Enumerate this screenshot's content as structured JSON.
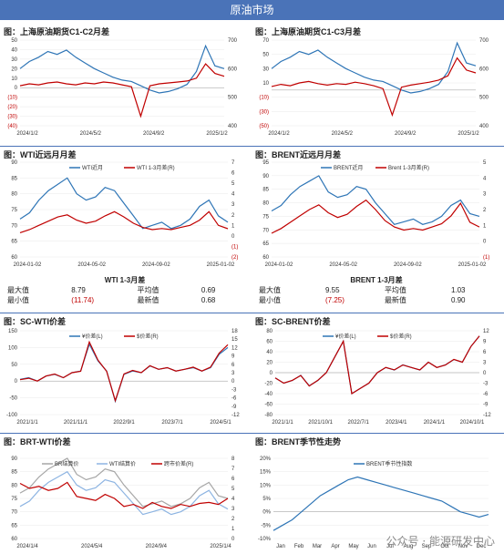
{
  "header": {
    "title": "原油市场"
  },
  "panels": [
    {
      "title": "图：上海原油期货C1-C2月差"
    },
    {
      "title": "图：上海原油期货C1-C3月差"
    },
    {
      "title": "图：WTI近远月月差"
    },
    {
      "title": "图：BRENT近远月月差"
    },
    {
      "title": "图：SC-WTI价差"
    },
    {
      "title": "图：SC-BRENT价差"
    },
    {
      "title": "图：BRT-WTI价差"
    },
    {
      "title": "图：BRENT季节性走势"
    }
  ],
  "stats_tables": [
    {
      "title": "WTI 1-3月差",
      "rows": [
        {
          "l1": "最大值",
          "v1": "8.79",
          "l2": "平均值",
          "v2": "0.69"
        },
        {
          "l1": "最小值",
          "v1": "(11.74)",
          "l2": "最新值",
          "v2": "0.68"
        }
      ]
    },
    {
      "title": "BRENT 1-3月差",
      "rows": [
        {
          "l1": "最大值",
          "v1": "9.55",
          "l2": "平均值",
          "v2": "1.03"
        },
        {
          "l1": "最小值",
          "v1": "(7.25)",
          "l2": "最新值",
          "v2": "0.90"
        }
      ]
    }
  ],
  "watermark": "公众号 · 能源研发中心",
  "colors": {
    "blue": "#2e75b6",
    "red": "#c00000",
    "gray": "#a6a6a6",
    "lightblue": "#8db4e2",
    "banner": "#4a73b8"
  },
  "chart_data": [
    {
      "type": "line",
      "title": "图：上海原油期货C1-C2月差",
      "x_ticks": [
        "2024/1/2",
        "2024/5/2",
        "2024/9/2",
        "2025/1/2"
      ],
      "left_ticks": [
        "50",
        "40",
        "30",
        "20",
        "10",
        "0",
        "(10)",
        "(20)",
        "(30)",
        "(40)"
      ],
      "left_range": [
        -40,
        50
      ],
      "right_ticks": [
        "700",
        "600",
        "500",
        "400"
      ],
      "right_range": [
        400,
        700
      ],
      "series": [
        {
          "axis": "right",
          "color": "blue",
          "values": [
            600,
            625,
            640,
            660,
            650,
            665,
            640,
            620,
            600,
            585,
            570,
            560,
            555,
            540,
            525,
            515,
            520,
            530,
            545,
            590,
            680,
            610,
            600
          ]
        },
        {
          "axis": "left",
          "color": "red",
          "values": [
            2,
            4,
            3,
            5,
            6,
            4,
            3,
            5,
            4,
            6,
            5,
            3,
            1,
            -30,
            2,
            4,
            5,
            6,
            7,
            10,
            25,
            15,
            12
          ]
        }
      ]
    },
    {
      "type": "line",
      "title": "图：上海原油期货C1-C3月差",
      "x_ticks": [
        "2024/1/2",
        "2024/5/2",
        "2024/9/2",
        "2025/1/2"
      ],
      "left_ticks": [
        "70",
        "50",
        "30",
        "10",
        "(10)",
        "(30)",
        "(50)"
      ],
      "left_range": [
        -50,
        70
      ],
      "right_ticks": [
        "700",
        "600",
        "500",
        "400"
      ],
      "right_range": [
        400,
        700
      ],
      "series": [
        {
          "axis": "right",
          "color": "blue",
          "values": [
            600,
            625,
            640,
            660,
            650,
            665,
            640,
            620,
            600,
            585,
            570,
            560,
            555,
            540,
            525,
            515,
            520,
            530,
            545,
            590,
            690,
            620,
            610
          ]
        },
        {
          "axis": "left",
          "color": "red",
          "values": [
            5,
            8,
            6,
            10,
            12,
            9,
            7,
            9,
            8,
            11,
            9,
            6,
            2,
            -35,
            4,
            7,
            9,
            11,
            14,
            20,
            45,
            28,
            24
          ]
        }
      ]
    },
    {
      "type": "line",
      "title": "图：WTI近远月月差",
      "legend": [
        "WTI近月",
        "WTI 1-3月差(R)"
      ],
      "x_ticks": [
        "2024-01-02",
        "2024-05-02",
        "2024-09-02",
        "2025-01-02"
      ],
      "left_ticks": [
        "90",
        "85",
        "80",
        "75",
        "70",
        "65",
        "60"
      ],
      "left_range": [
        60,
        90
      ],
      "right_ticks": [
        "7",
        "6",
        "5",
        "4",
        "3",
        "2",
        "1",
        "0",
        "(1)",
        "(2)"
      ],
      "right_range": [
        -2,
        7
      ],
      "series": [
        {
          "name": "WTI近月",
          "axis": "left",
          "color": "blue",
          "values": [
            72,
            74,
            78,
            81,
            83,
            85,
            80,
            78,
            79,
            82,
            81,
            77,
            73,
            69,
            70,
            71,
            69,
            70,
            72,
            76,
            78,
            73,
            71
          ]
        },
        {
          "name": "WTI 1-3月差(R)",
          "axis": "right",
          "color": "red",
          "values": [
            0.3,
            0.6,
            1.0,
            1.4,
            1.8,
            2.0,
            1.5,
            1.2,
            1.4,
            1.9,
            2.3,
            1.8,
            1.2,
            0.8,
            0.6,
            0.7,
            0.6,
            0.8,
            1.0,
            1.5,
            2.3,
            1.0,
            0.68
          ]
        }
      ]
    },
    {
      "type": "line",
      "title": "图：BRENT近远月月差",
      "legend": [
        "BRENT近月",
        "Brent 1-3月差(R)"
      ],
      "x_ticks": [
        "2024-01-02",
        "2024-05-02",
        "2024-09-02",
        "2025-01-02"
      ],
      "left_ticks": [
        "95",
        "90",
        "85",
        "80",
        "75",
        "70",
        "65",
        "60"
      ],
      "left_range": [
        60,
        95
      ],
      "right_ticks": [
        "5",
        "4",
        "3",
        "2",
        "1",
        "0",
        "(1)"
      ],
      "right_range": [
        -1,
        5
      ],
      "series": [
        {
          "name": "BRENT近月",
          "axis": "left",
          "color": "blue",
          "values": [
            77,
            79,
            83,
            86,
            88,
            90,
            84,
            82,
            83,
            86,
            85,
            80,
            76,
            72,
            73,
            74,
            72,
            73,
            75,
            79,
            81,
            76,
            75
          ]
        },
        {
          "name": "Brent 1-3月差(R)",
          "axis": "right",
          "color": "red",
          "values": [
            0.5,
            0.8,
            1.2,
            1.6,
            2.0,
            2.3,
            1.8,
            1.5,
            1.7,
            2.2,
            2.6,
            2.0,
            1.3,
            0.9,
            0.7,
            0.8,
            0.7,
            0.9,
            1.1,
            1.6,
            2.4,
            1.2,
            0.9
          ]
        }
      ]
    },
    {
      "type": "line",
      "title": "图：SC-WTI价差",
      "legend": [
        "¥价差(L)",
        "$价差(R)"
      ],
      "x_ticks": [
        "2021/1/1",
        "2021/11/1",
        "2022/9/1",
        "2023/7/1",
        "2024/5/1"
      ],
      "left_ticks": [
        "150",
        "100",
        "50",
        "0",
        "-50",
        "-100"
      ],
      "left_range": [
        -100,
        150
      ],
      "right_ticks": [
        "18",
        "15",
        "12",
        "9",
        "6",
        "3",
        "0",
        "-3",
        "-6",
        "-9",
        "-12"
      ],
      "right_range": [
        -12,
        18
      ],
      "series": [
        {
          "name": "¥价差(L)",
          "axis": "left",
          "color": "blue",
          "values": [
            5,
            10,
            0,
            15,
            20,
            10,
            25,
            30,
            110,
            60,
            30,
            -60,
            20,
            30,
            25,
            45,
            35,
            40,
            30,
            35,
            40,
            30,
            40,
            80,
            100
          ]
        },
        {
          "name": "$价差(R)",
          "axis": "right",
          "color": "red",
          "values": [
            0.5,
            1.0,
            0.0,
            1.8,
            2.5,
            1.2,
            3.0,
            3.5,
            14.0,
            7.5,
            3.5,
            -7.0,
            2.5,
            3.8,
            3.0,
            5.5,
            4.2,
            4.8,
            3.6,
            4.2,
            5.0,
            3.6,
            5.0,
            10.0,
            13.0
          ]
        }
      ]
    },
    {
      "type": "line",
      "title": "图：SC-BRENT价差",
      "legend": [
        "¥价差(L)",
        "$价差(R)"
      ],
      "x_ticks": [
        "2021/1/1",
        "2021/10/1",
        "2022/7/1",
        "2023/4/1",
        "2024/1/1",
        "2024/10/1"
      ],
      "left_ticks": [
        "80",
        "60",
        "40",
        "20",
        "0",
        "-20",
        "-40",
        "-60",
        "-80"
      ],
      "left_range": [
        -80,
        80
      ],
      "right_ticks": [
        "12",
        "9",
        "6",
        "3",
        "0",
        "-3",
        "-6",
        "-9",
        "-12"
      ],
      "right_range": [
        -12,
        12
      ],
      "series": [
        {
          "name": "¥价差(L)",
          "axis": "left",
          "color": "blue",
          "values": [
            -10,
            -20,
            -15,
            -5,
            -25,
            -15,
            0,
            30,
            60,
            -40,
            -30,
            -20,
            0,
            10,
            5,
            15,
            10,
            5,
            20,
            10,
            15,
            25,
            20,
            50,
            70
          ]
        },
        {
          "name": "$价差(R)",
          "axis": "right",
          "color": "red",
          "values": [
            -1.5,
            -3.0,
            -2.2,
            -0.8,
            -3.8,
            -2.2,
            0.0,
            4.5,
            9.0,
            -6.0,
            -4.5,
            -3.0,
            0.0,
            1.5,
            0.8,
            2.2,
            1.5,
            0.8,
            3.0,
            1.5,
            2.2,
            3.8,
            3.0,
            7.5,
            10.5
          ]
        }
      ]
    },
    {
      "type": "line",
      "title": "图：BRT-WTI价差",
      "legend": [
        "BR结算价",
        "WTI结算价",
        "跨市价差(R)"
      ],
      "x_ticks": [
        "2024/1/4",
        "2024/5/4",
        "2024/9/4",
        "2025/1/4"
      ],
      "left_ticks": [
        "90",
        "85",
        "80",
        "75",
        "70",
        "65",
        "60"
      ],
      "left_range": [
        60,
        90
      ],
      "right_ticks": [
        "8",
        "7",
        "6",
        "5",
        "4",
        "3",
        "2",
        "1",
        "0"
      ],
      "right_range": [
        0,
        8
      ],
      "series": [
        {
          "name": "BR结算价",
          "axis": "left",
          "color": "gray",
          "values": [
            77,
            79,
            83,
            86,
            88,
            90,
            84,
            82,
            83,
            86,
            85,
            80,
            76,
            72,
            73,
            74,
            72,
            73,
            75,
            79,
            81,
            76,
            75
          ]
        },
        {
          "name": "WTI结算价",
          "axis": "left",
          "color": "lightblue",
          "values": [
            72,
            74,
            78,
            81,
            83,
            85,
            80,
            78,
            79,
            82,
            81,
            77,
            73,
            69,
            70,
            71,
            69,
            70,
            72,
            76,
            78,
            73,
            71
          ]
        },
        {
          "name": "跨市价差(R)",
          "axis": "right",
          "color": "red",
          "values": [
            5.5,
            5.0,
            5.2,
            4.8,
            5.0,
            5.6,
            4.2,
            4.0,
            3.8,
            4.4,
            4.0,
            3.2,
            3.4,
            3.0,
            3.6,
            3.2,
            3.0,
            3.4,
            3.2,
            3.5,
            3.6,
            3.4,
            4.0
          ]
        }
      ]
    },
    {
      "type": "line",
      "title": "图：BRENT季节性走势",
      "legend": [
        "BRENT季节性指数"
      ],
      "x_ticks": [
        "Jan",
        "Feb",
        "Mar",
        "Apr",
        "May",
        "Jun",
        "Jul",
        "Aug",
        "Sep",
        "Oct",
        "Nov",
        "Dec"
      ],
      "left_ticks": [
        "20%",
        "15%",
        "10%",
        "5%",
        "0%",
        "-5%",
        "-10%"
      ],
      "left_range": [
        -10,
        20
      ],
      "series": [
        {
          "name": "BRENT季节性指数",
          "axis": "left",
          "color": "blue",
          "values": [
            -7,
            -5,
            -3,
            0,
            3,
            6,
            8,
            10,
            12,
            13,
            12,
            11,
            10,
            9,
            8,
            7,
            6,
            5,
            4,
            2,
            0,
            -1,
            -2,
            -1
          ]
        }
      ]
    }
  ]
}
